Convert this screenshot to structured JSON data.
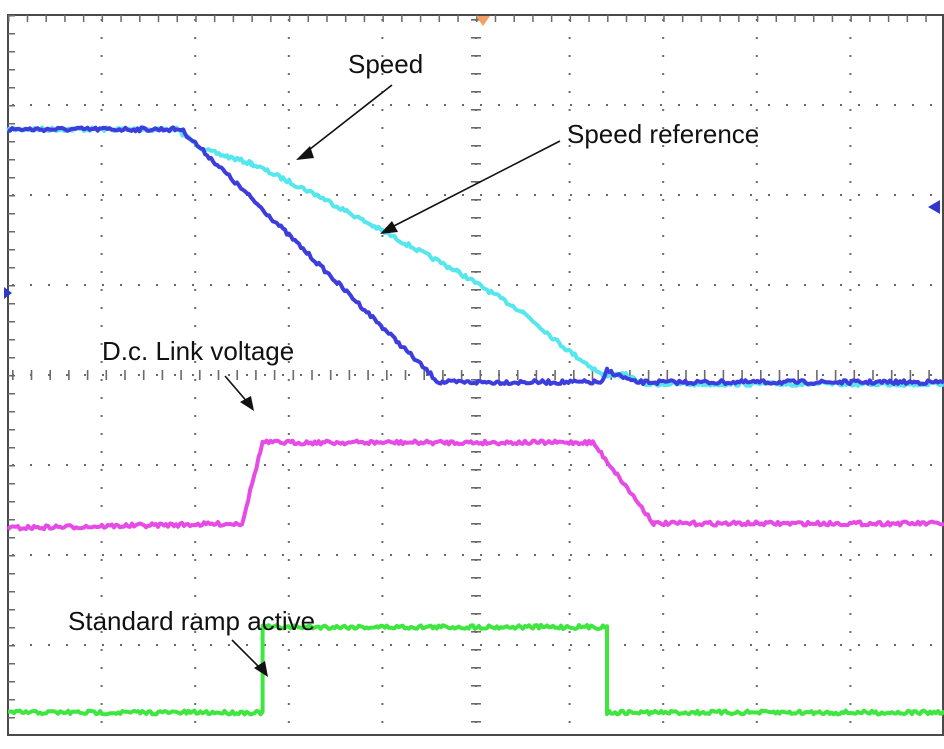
{
  "chart_data": {
    "type": "line",
    "title": "",
    "xlabel": "",
    "ylabel": "",
    "grid": true,
    "divisions": {
      "x": 10,
      "y": 8
    },
    "xlim": [
      0,
      10
    ],
    "ylim": [
      0,
      8
    ],
    "series": [
      {
        "key": "speed",
        "name": "Speed",
        "color": "#55e6ee",
        "points": [
          [
            0,
            6.73
          ],
          [
            1.8,
            6.73
          ],
          [
            2.1,
            6.5
          ],
          [
            2.6,
            6.35
          ],
          [
            3.3,
            6.0
          ],
          [
            4.0,
            5.6
          ],
          [
            4.8,
            5.15
          ],
          [
            5.5,
            4.7
          ],
          [
            5.95,
            4.3
          ],
          [
            6.35,
            4.0
          ],
          [
            6.6,
            4.0
          ],
          [
            6.8,
            3.9
          ],
          [
            10,
            3.9
          ]
        ]
      },
      {
        "key": "speed_reference",
        "name": "Speed reference",
        "color": "#3d3ddd",
        "points": [
          [
            0,
            6.73
          ],
          [
            1.85,
            6.73
          ],
          [
            4.6,
            3.92
          ],
          [
            6.35,
            3.92
          ],
          [
            6.4,
            4.05
          ],
          [
            6.7,
            3.92
          ],
          [
            10,
            3.92
          ]
        ]
      },
      {
        "key": "dc_link_voltage",
        "name": "D.c. Link voltage",
        "color": "#e64be6",
        "points": [
          [
            0,
            2.3
          ],
          [
            2.5,
            2.35
          ],
          [
            2.72,
            3.25
          ],
          [
            6.25,
            3.25
          ],
          [
            6.9,
            2.35
          ],
          [
            10,
            2.35
          ]
        ]
      },
      {
        "key": "standard_ramp_active",
        "name": "Standard ramp active",
        "color": "#3fe63f",
        "points": [
          [
            0,
            0.25
          ],
          [
            2.72,
            0.25
          ],
          [
            2.72,
            1.2
          ],
          [
            6.4,
            1.2
          ],
          [
            6.4,
            0.25
          ],
          [
            10,
            0.25
          ]
        ]
      }
    ],
    "annotations": [
      {
        "key": "speed",
        "text": "Speed"
      },
      {
        "key": "speed_reference",
        "text": "Speed reference"
      },
      {
        "key": "dc_link_voltage",
        "text": "D.c. Link voltage"
      },
      {
        "key": "standard_ramp_active",
        "text": "Standard ramp active"
      }
    ]
  }
}
